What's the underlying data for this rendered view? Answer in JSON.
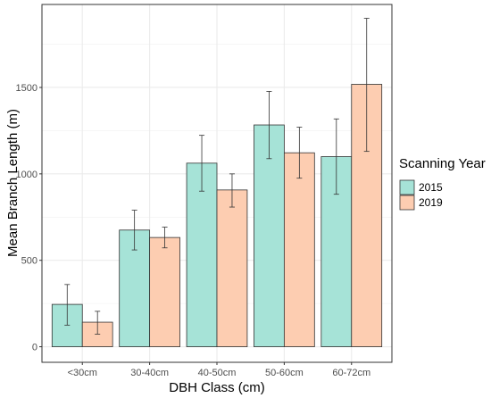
{
  "chart_data": {
    "type": "bar",
    "xlabel": "DBH Class (cm)",
    "ylabel": "Mean Branch Length (m)",
    "categories": [
      "<30cm",
      "30-40cm",
      "40-50cm",
      "50-60cm",
      "60-72cm"
    ],
    "ylim": [
      -90,
      1980
    ],
    "yticks": [
      0,
      500,
      1000,
      1500
    ],
    "grid": true,
    "legend": {
      "title": "Scanning Year",
      "placement": "right"
    },
    "series": [
      {
        "name": "2015",
        "color": "#a6e3d7",
        "values": [
          245,
          675,
          1062,
          1283,
          1100
        ],
        "err_low": [
          125,
          560,
          900,
          1088,
          882
        ],
        "err_high": [
          360,
          790,
          1223,
          1477,
          1318
        ]
      },
      {
        "name": "2019",
        "color": "#fdcdb1",
        "values": [
          142,
          632,
          907,
          1122,
          1518
        ],
        "err_low": [
          73,
          572,
          808,
          975,
          1130
        ],
        "err_high": [
          205,
          692,
          1000,
          1270,
          1900
        ]
      }
    ]
  }
}
